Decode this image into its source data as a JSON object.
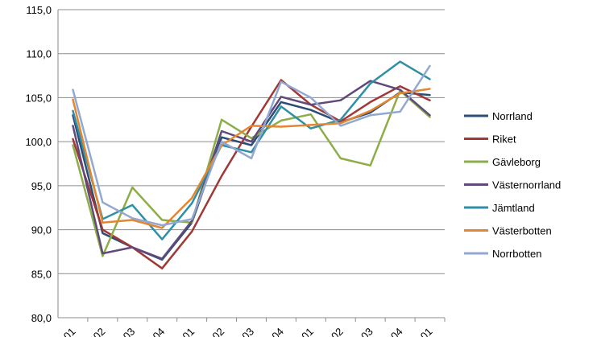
{
  "chart_data": {
    "type": "line",
    "title": "",
    "xlabel": "",
    "ylabel": "",
    "ylim": [
      80,
      115
    ],
    "y_ticks": [
      "115,0",
      "110,0",
      "105,0",
      "100,0",
      "95,0",
      "90,0",
      "85,0",
      "80,0"
    ],
    "x_tick_labels": [
      "01",
      "02",
      "03",
      "04",
      "01",
      "02",
      "03",
      "04",
      "01",
      "02",
      "03",
      "04",
      "01"
    ],
    "grid": "horizontal",
    "legend_position": "right",
    "series": [
      {
        "name": "Norrland",
        "color": "#2c4d75",
        "values": [
          103.0,
          89.6,
          88.0,
          86.6,
          90.8,
          100.5,
          99.6,
          104.5,
          103.6,
          102.2,
          103.3,
          105.6,
          105.3
        ]
      },
      {
        "name": "Riket",
        "color": "#a03936",
        "values": [
          100.3,
          90.0,
          88.0,
          85.6,
          89.8,
          96.1,
          101.7,
          107.0,
          104.2,
          102.3,
          104.5,
          106.3,
          104.7
        ]
      },
      {
        "name": "Gävleborg",
        "color": "#8cad47",
        "values": [
          99.6,
          87.0,
          94.8,
          91.1,
          90.8,
          102.5,
          100.4,
          102.4,
          103.1,
          98.1,
          97.3,
          105.8,
          102.8
        ]
      },
      {
        "name": "Västernorrland",
        "color": "#604a7b",
        "values": [
          101.8,
          87.3,
          88.0,
          86.7,
          91.0,
          101.2,
          100.0,
          105.1,
          104.2,
          104.7,
          106.9,
          105.9,
          103.0
        ]
      },
      {
        "name": "Jämtland",
        "color": "#2f8fa4",
        "values": [
          103.5,
          91.2,
          92.8,
          88.9,
          93.0,
          99.6,
          98.8,
          104.0,
          101.5,
          102.5,
          106.6,
          109.1,
          107.1
        ]
      },
      {
        "name": "Västerbotten",
        "color": "#e3862f",
        "values": [
          104.8,
          90.8,
          91.1,
          90.2,
          93.6,
          99.6,
          101.8,
          101.7,
          101.9,
          102.1,
          103.5,
          105.5,
          106.0
        ]
      },
      {
        "name": "Norrbotten",
        "color": "#93a8d1",
        "values": [
          105.9,
          93.1,
          91.3,
          90.5,
          91.2,
          100.0,
          98.1,
          106.8,
          105.0,
          101.8,
          103.0,
          103.4,
          108.6
        ]
      }
    ]
  }
}
